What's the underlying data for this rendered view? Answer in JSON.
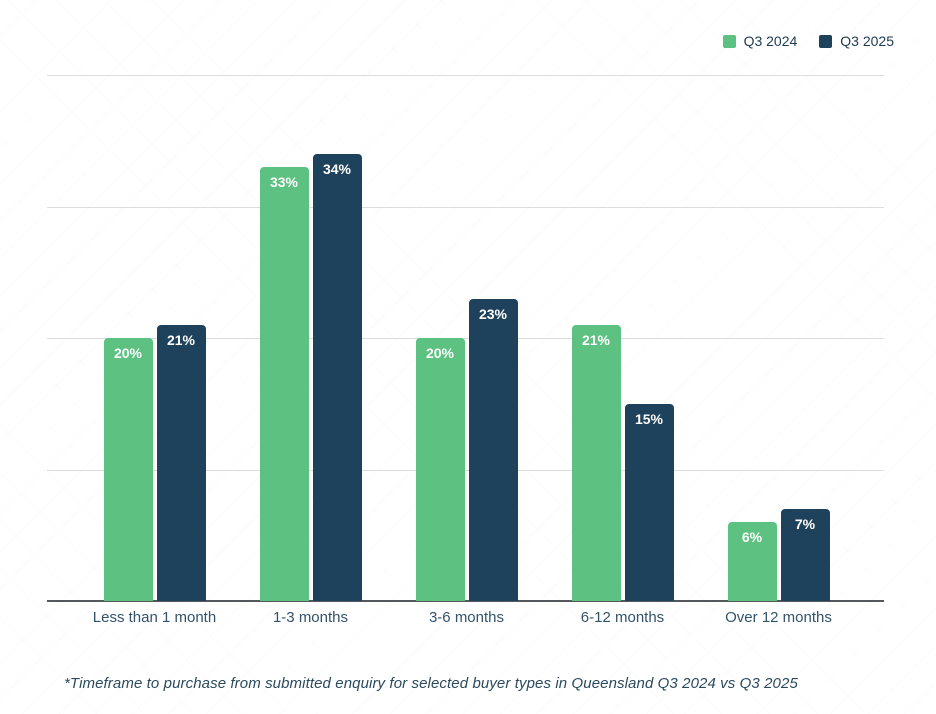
{
  "legend": {
    "items": [
      {
        "label": "Q3 2024",
        "color": "#5cc181"
      },
      {
        "label": "Q3 2025",
        "color": "#1e425c"
      }
    ]
  },
  "chart_data": {
    "type": "bar",
    "categories": [
      "Less than 1 month",
      "1-3 months",
      "3-6 months",
      "6-12 months",
      "Over 12 months"
    ],
    "series": [
      {
        "name": "Q3 2024",
        "color": "#5cc181",
        "values": [
          20,
          33,
          20,
          21,
          6
        ]
      },
      {
        "name": "Q3 2025",
        "color": "#1e425c",
        "values": [
          21,
          34,
          23,
          15,
          7
        ]
      }
    ],
    "value_suffix": "%",
    "title": "",
    "xlabel": "",
    "ylabel": "",
    "ylim": [
      0,
      40
    ],
    "gridlines": [
      0,
      10,
      20,
      30,
      40
    ],
    "grid": true,
    "legend_position": "top-right",
    "data_labels": "inside-top-white"
  },
  "caption": "*Timeframe to purchase from submitted enquiry for selected buyer types in Queensland Q3 2024 vs Q3 2025",
  "colors": {
    "gridline": "#dcdcdc",
    "axis_line": "#54585c",
    "axis_label_text": "#33536b",
    "legend_text": "#1e3a50",
    "caption_text": "#2b4a5e",
    "bar_value_text": "#ffffff"
  }
}
